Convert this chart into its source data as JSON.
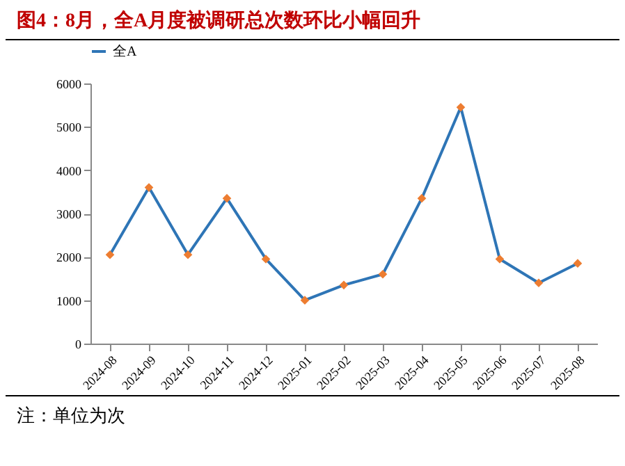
{
  "chart_data": {
    "type": "line",
    "title": "图4：8月，全A月度被调研总次数环比小幅回升",
    "categories": [
      "2024-08",
      "2024-09",
      "2024-10",
      "2024-11",
      "2024-12",
      "2025-01",
      "2025-02",
      "2025-03",
      "2025-04",
      "2025-05",
      "2025-06",
      "2025-07",
      "2025-08"
    ],
    "series": [
      {
        "name": "全A",
        "color": "#2e75b6",
        "colors": [
          "#ed7d31",
          "#ed7d31",
          "#ed7d31",
          "#ed7d31",
          "#ed7d31",
          "#ed7d31",
          "#ed7d31",
          "#ed7d31",
          "#ed7d31",
          "#ed7d31",
          "#ed7d31",
          "#ed7d31",
          "#ed7d31"
        ],
        "values": [
          2050,
          3600,
          2050,
          3350,
          1950,
          1000,
          1350,
          1600,
          3350,
          5450,
          1950,
          1400,
          1850
        ]
      }
    ],
    "ylim": [
      0,
      6000
    ],
    "yticks": [
      0,
      1000,
      2000,
      3000,
      4000,
      5000,
      6000
    ],
    "grid": false,
    "legend": "top",
    "marker": "diamond",
    "line_style": "solid",
    "annotations": [
      "注：单位为次"
    ]
  }
}
